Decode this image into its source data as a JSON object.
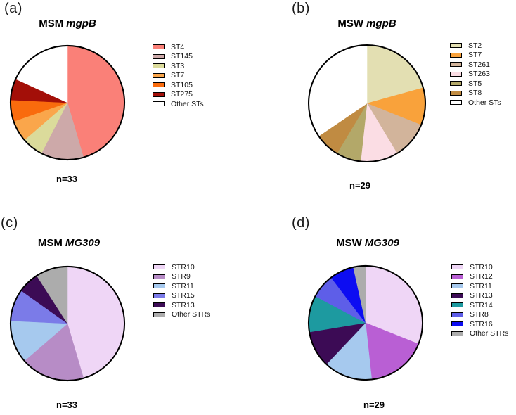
{
  "figure": {
    "background": "#FFFFFF",
    "panels": [
      {
        "label": "(a)",
        "title_group": "MSM",
        "title_gene": "mgpB",
        "n_label": "n=33"
      },
      {
        "label": "(b)",
        "title_group": "MSW",
        "title_gene": "mgpB",
        "n_label": "n=29"
      },
      {
        "label": "(c)",
        "title_group": "MSM",
        "title_gene": "MG309",
        "n_label": "n=33"
      },
      {
        "label": "(d)",
        "title_group": "MSW",
        "title_gene": "MG309",
        "n_label": "n=29"
      }
    ]
  },
  "chart_data": [
    {
      "type": "pie",
      "title": "MSM mgpB",
      "sample_size_label": "n=33",
      "total": 33,
      "categories": [
        "ST4",
        "ST145",
        "ST3",
        "ST7",
        "ST105",
        "ST275",
        "Other STs"
      ],
      "values": [
        15,
        4,
        2,
        2,
        2,
        2,
        6
      ],
      "colors": [
        "#FA8078",
        "#CDA9A9",
        "#DBDB9B",
        "#FAA64B",
        "#F96B0D",
        "#A30F08",
        "#FFFFFF"
      ],
      "start_angle_deg": 0,
      "direction": "clockwise",
      "legend_position": "right",
      "outline_color": "#000000"
    },
    {
      "type": "pie",
      "title": "MSW mgpB",
      "sample_size_label": "n=29",
      "total": 29,
      "categories": [
        "ST2",
        "ST7",
        "ST261",
        "ST263",
        "ST5",
        "ST8",
        "Other STs"
      ],
      "values": [
        6,
        3,
        3,
        3,
        2,
        2,
        10
      ],
      "colors": [
        "#E3DFB2",
        "#F9A23B",
        "#D2B49B",
        "#FBDDE4",
        "#B3A869",
        "#C08B42",
        "#FFFFFF"
      ],
      "start_angle_deg": 0,
      "direction": "clockwise",
      "legend_position": "right",
      "outline_color": "#000000"
    },
    {
      "type": "pie",
      "title": "MSM MG309",
      "sample_size_label": "n=33",
      "total": 33,
      "categories": [
        "STR10",
        "STR9",
        "STR11",
        "STR15",
        "STR13",
        "Other STRs"
      ],
      "values": [
        15,
        6,
        4,
        3,
        2,
        3
      ],
      "colors": [
        "#EFD6F6",
        "#B78CC6",
        "#A6C9EE",
        "#7B7BE8",
        "#3C0B55",
        "#ACACAC"
      ],
      "start_angle_deg": 0,
      "direction": "clockwise",
      "legend_position": "right",
      "outline_color": "#000000"
    },
    {
      "type": "pie",
      "title": "MSW MG309",
      "sample_size_label": "n=29",
      "total": 29,
      "categories": [
        "STR10",
        "STR12",
        "STR11",
        "STR13",
        "STR14",
        "STR8",
        "STR16",
        "Other STRs"
      ],
      "values": [
        9,
        5,
        4,
        3,
        3,
        2,
        2,
        1
      ],
      "colors": [
        "#EFD6F6",
        "#B95FD4",
        "#A6C9EE",
        "#3C0B55",
        "#1D9AA0",
        "#5E5EE8",
        "#0D0DF2",
        "#ACACAC"
      ],
      "start_angle_deg": 0,
      "direction": "clockwise",
      "legend_position": "right",
      "outline_color": "#000000"
    }
  ]
}
